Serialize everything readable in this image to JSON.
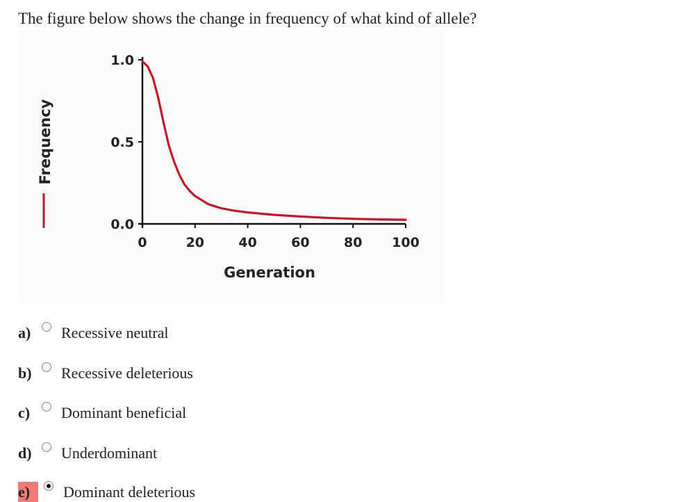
{
  "question": {
    "text": "The figure below shows the change in frequency of what kind of allele?"
  },
  "chart_data": {
    "type": "line",
    "title": "",
    "xlabel": "Generation",
    "ylabel": "Frequency",
    "xlim": [
      0,
      100
    ],
    "ylim": [
      0,
      1
    ],
    "x_ticks": [
      "0",
      "20",
      "40",
      "60",
      "80",
      "100"
    ],
    "y_ticks": [
      "1.0",
      "0.5",
      "0.0"
    ],
    "grid": false,
    "legend": "none",
    "series": [
      {
        "color": "#c01a2c",
        "x": [
          0,
          2,
          4,
          6,
          8,
          10,
          12,
          14,
          16,
          18,
          20,
          25,
          30,
          35,
          40,
          50,
          60,
          70,
          80,
          90,
          100
        ],
        "y": [
          0.99,
          0.96,
          0.89,
          0.77,
          0.62,
          0.48,
          0.38,
          0.3,
          0.24,
          0.2,
          0.17,
          0.12,
          0.095,
          0.08,
          0.07,
          0.055,
          0.045,
          0.037,
          0.031,
          0.027,
          0.025
        ]
      }
    ]
  },
  "choices": [
    {
      "letter": "a)",
      "text": "Recessive neutral",
      "selected": false
    },
    {
      "letter": "b)",
      "text": "Recessive deleterious",
      "selected": false
    },
    {
      "letter": "c)",
      "text": "Dominant beneficial",
      "selected": false
    },
    {
      "letter": "d)",
      "text": "Underdominant",
      "selected": false
    },
    {
      "letter": "e)",
      "text": "Dominant deleterious",
      "selected": true
    }
  ],
  "colors": {
    "curve": "#c01a2c",
    "selected_highlight": "#f07a76",
    "axis": "#111111"
  }
}
